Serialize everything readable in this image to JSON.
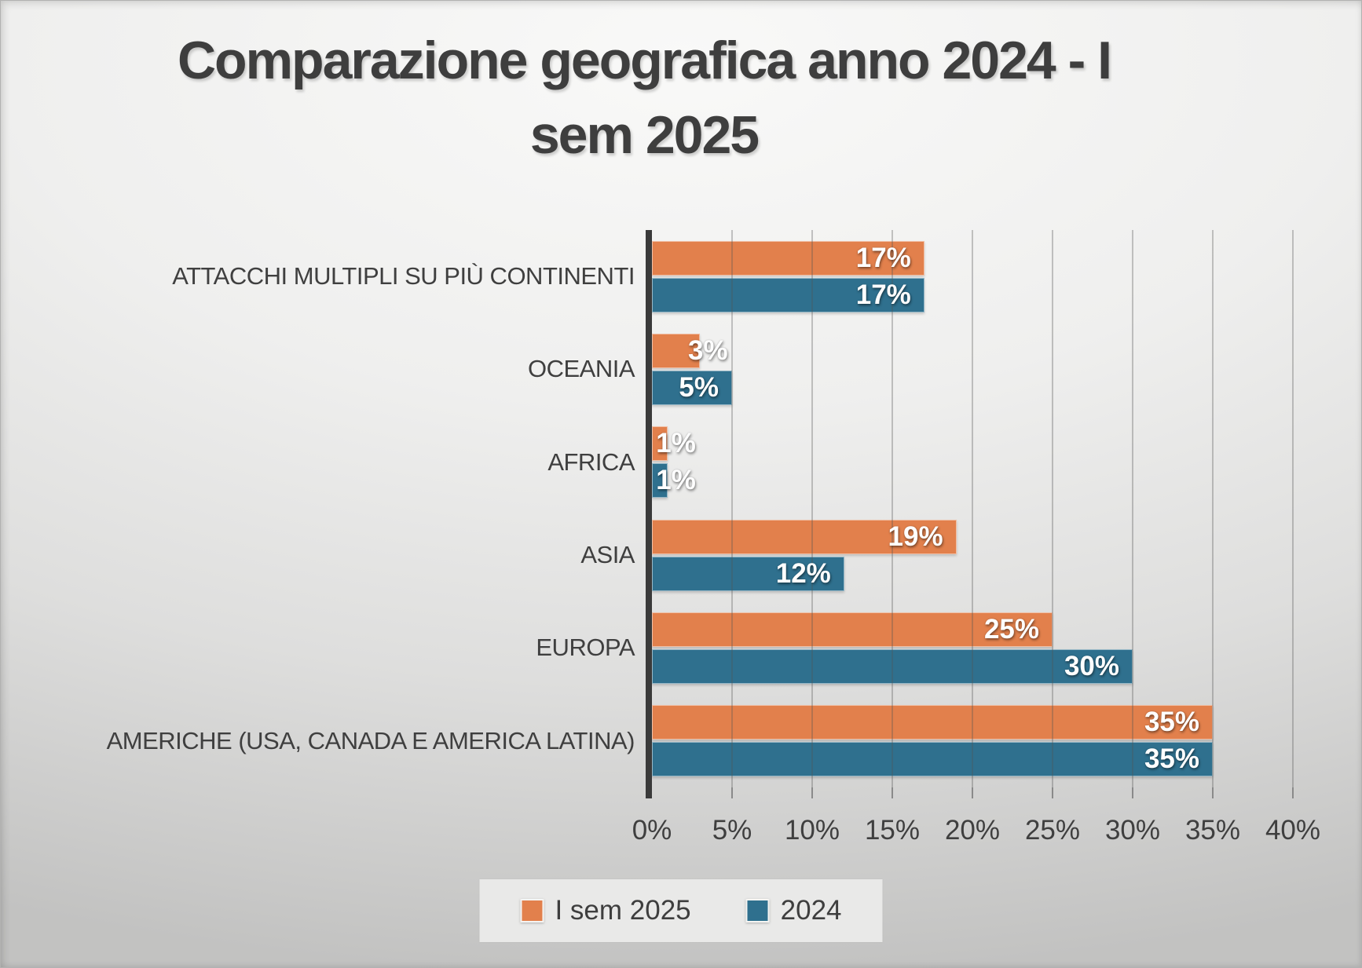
{
  "title": {
    "line1": "Comparazione geografica anno 2024 - I",
    "line2": "sem 2025"
  },
  "chart_data": {
    "type": "bar",
    "orientation": "horizontal",
    "title": "Comparazione geografica anno 2024 - I sem 2025",
    "categories": [
      "ATTACCHI MULTIPLI SU PIÙ CONTINENTI",
      "OCEANIA",
      "AFRICA",
      "ASIA",
      "EUROPA",
      "AMERICHE (USA, CANADA E AMERICA LATINA)"
    ],
    "series": [
      {
        "name": "I sem 2025",
        "color": "#E2804C",
        "values": [
          17,
          3,
          1,
          19,
          25,
          35
        ]
      },
      {
        "name": "2024",
        "color": "#2F708E",
        "values": [
          17,
          5,
          1,
          12,
          30,
          35
        ]
      }
    ],
    "value_suffix": "%",
    "xlabel": "",
    "ylabel": "",
    "xlim": [
      0,
      40
    ],
    "x_tick_step": 5,
    "x_tick_labels": [
      "0%",
      "5%",
      "10%",
      "15%",
      "20%",
      "25%",
      "30%",
      "35%",
      "40%"
    ],
    "grid": true,
    "legend_position": "bottom",
    "data_label_position": "inside-end",
    "data_label_outside_threshold": 5
  },
  "legend": {
    "items": [
      {
        "label": "I sem 2025",
        "color": "#E2804C"
      },
      {
        "label": "2024",
        "color": "#2F708E"
      }
    ]
  },
  "colors": {
    "text": "#3E3E3E",
    "axis_line": "#3A3A3A",
    "gridline": "#A9A9A9",
    "legend_background": "#E9E9E8"
  }
}
